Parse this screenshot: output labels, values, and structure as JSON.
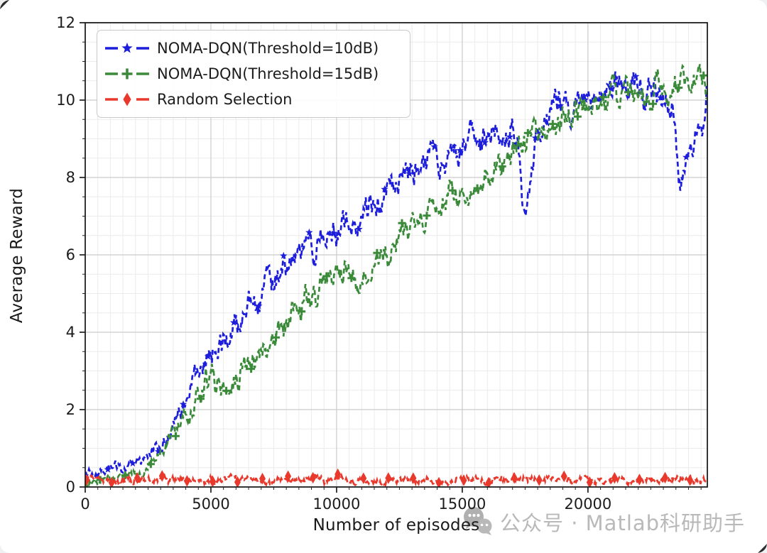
{
  "watermark": {
    "icon": "wechat-icon",
    "text": "公众号 · Matlab科研助手"
  },
  "chart_data": {
    "type": "line",
    "title": "",
    "xlabel": "Number of episodes",
    "ylabel": "Average Reward",
    "xlim": [
      0,
      24750
    ],
    "ylim": [
      0,
      12
    ],
    "x_ticks": [
      0,
      5000,
      10000,
      15000,
      20000
    ],
    "y_ticks": [
      0,
      2,
      4,
      6,
      8,
      10,
      12
    ],
    "grid": {
      "major": true,
      "minor": true,
      "minor_x_step": 500,
      "minor_y_step": 0.5
    },
    "legend_position": "upper-left",
    "series": [
      {
        "name": "NOMA-DQN(Threshold=10dB)",
        "color": "#1d1ddc",
        "linestyle": "dashed",
        "marker": "star",
        "marker_every": 1000,
        "marker_start": 900,
        "noise": 0.26,
        "seed": 11,
        "flat": false,
        "anchors": [
          [
            0,
            0.3
          ],
          [
            300,
            0.45
          ],
          [
            700,
            0.4
          ],
          [
            1000,
            0.55
          ],
          [
            1400,
            0.45
          ],
          [
            1800,
            0.55
          ],
          [
            2200,
            0.65
          ],
          [
            2600,
            0.8
          ],
          [
            3000,
            1.05
          ],
          [
            3400,
            1.4
          ],
          [
            3800,
            2.0
          ],
          [
            4200,
            2.5
          ],
          [
            4500,
            2.8
          ],
          [
            4800,
            3.2
          ],
          [
            5100,
            3.55
          ],
          [
            5500,
            3.7
          ],
          [
            5800,
            3.8
          ],
          [
            6100,
            4.25
          ],
          [
            6500,
            4.7
          ],
          [
            7000,
            5.1
          ],
          [
            7500,
            5.3
          ],
          [
            8000,
            5.6
          ],
          [
            8500,
            5.9
          ],
          [
            9000,
            6.2
          ],
          [
            9500,
            6.5
          ],
          [
            10000,
            6.7
          ],
          [
            10500,
            6.9
          ],
          [
            11000,
            7.0
          ],
          [
            11500,
            7.2
          ],
          [
            12000,
            7.6
          ],
          [
            12500,
            7.9
          ],
          [
            13000,
            8.2
          ],
          [
            13400,
            8.1
          ],
          [
            13800,
            8.5
          ],
          [
            14200,
            8.4
          ],
          [
            14600,
            8.6
          ],
          [
            15000,
            8.9
          ],
          [
            15400,
            9.2
          ],
          [
            15800,
            9.0
          ],
          [
            16200,
            9.4
          ],
          [
            16600,
            9.1
          ],
          [
            17000,
            9.4
          ],
          [
            17200,
            8.8
          ],
          [
            17450,
            7.0
          ],
          [
            17700,
            7.8
          ],
          [
            18000,
            8.9
          ],
          [
            18300,
            9.6
          ],
          [
            18700,
            9.8
          ],
          [
            19000,
            10.0
          ],
          [
            19300,
            9.7
          ],
          [
            19600,
            10.1
          ],
          [
            20000,
            9.9
          ],
          [
            20400,
            10.2
          ],
          [
            20800,
            10.0
          ],
          [
            21200,
            10.3
          ],
          [
            21600,
            10.1
          ],
          [
            22000,
            10.3
          ],
          [
            22400,
            10.4
          ],
          [
            22800,
            10.2
          ],
          [
            23100,
            10.3
          ],
          [
            23400,
            10.0
          ],
          [
            23550,
            8.5
          ],
          [
            23700,
            7.7
          ],
          [
            23900,
            8.1
          ],
          [
            24100,
            8.6
          ],
          [
            24300,
            8.9
          ],
          [
            24500,
            9.4
          ],
          [
            24600,
            9.2
          ],
          [
            24720,
            10.3
          ]
        ]
      },
      {
        "name": "NOMA-DQN(Threshold=15dB)",
        "color": "#3a8a3a",
        "linestyle": "dashed",
        "marker": "plus",
        "marker_every": 1000,
        "marker_start": 600,
        "noise": 0.26,
        "seed": 23,
        "flat": false,
        "anchors": [
          [
            0,
            0.1
          ],
          [
            600,
            0.15
          ],
          [
            1200,
            0.2
          ],
          [
            1800,
            0.3
          ],
          [
            2400,
            0.5
          ],
          [
            3000,
            0.9
          ],
          [
            3600,
            1.5
          ],
          [
            4200,
            2.1
          ],
          [
            4800,
            2.7
          ],
          [
            5100,
            3.0
          ],
          [
            5400,
            2.5
          ],
          [
            5600,
            2.3
          ],
          [
            5900,
            2.8
          ],
          [
            6200,
            3.1
          ],
          [
            6600,
            3.3
          ],
          [
            7000,
            3.6
          ],
          [
            7500,
            3.9
          ],
          [
            8000,
            4.3
          ],
          [
            8500,
            4.6
          ],
          [
            9000,
            4.9
          ],
          [
            9500,
            5.3
          ],
          [
            10000,
            5.6
          ],
          [
            10300,
            5.8
          ],
          [
            10600,
            5.1
          ],
          [
            10900,
            5.5
          ],
          [
            11300,
            5.7
          ],
          [
            11700,
            5.9
          ],
          [
            12100,
            6.2
          ],
          [
            12500,
            6.4
          ],
          [
            13000,
            6.7
          ],
          [
            13500,
            7.0
          ],
          [
            14000,
            7.3
          ],
          [
            14500,
            7.5
          ],
          [
            15000,
            7.7
          ],
          [
            15500,
            7.9
          ],
          [
            16000,
            8.1
          ],
          [
            16500,
            8.4
          ],
          [
            17000,
            8.7
          ],
          [
            17500,
            9.0
          ],
          [
            18000,
            9.2
          ],
          [
            18500,
            9.4
          ],
          [
            19000,
            9.6
          ],
          [
            19500,
            9.8
          ],
          [
            20000,
            10.0
          ],
          [
            20500,
            10.1
          ],
          [
            21000,
            10.1
          ],
          [
            21500,
            10.2
          ],
          [
            22000,
            10.25
          ],
          [
            22500,
            10.3
          ],
          [
            23000,
            10.4
          ],
          [
            23500,
            10.3
          ],
          [
            24000,
            10.4
          ],
          [
            24350,
            10.45
          ],
          [
            24720,
            10.15
          ]
        ]
      },
      {
        "name": "Random Selection",
        "color": "#e8392c",
        "linestyle": "dashed",
        "marker": "diamond",
        "marker_every": 1000,
        "marker_start": 60,
        "noise": 0.05,
        "seed": 5,
        "flat": true,
        "anchors": [
          [
            0,
            0.18
          ],
          [
            24720,
            0.18
          ]
        ]
      }
    ]
  }
}
